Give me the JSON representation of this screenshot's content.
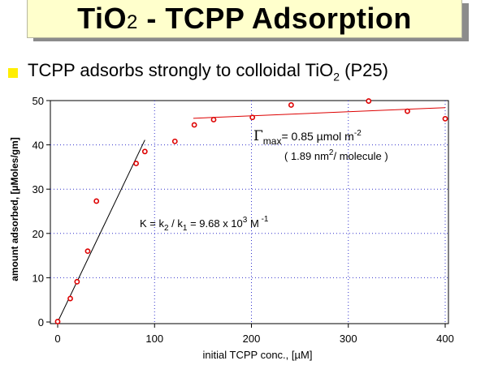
{
  "slide": {
    "title_main": "TiO",
    "title_sub": "2",
    "title_rest": " - TCPP Adsorption",
    "bullet_main": "TCPP adsorbs strongly to colloidal TiO",
    "bullet_sub": "2",
    "bullet_rest": " (P25)"
  },
  "colors": {
    "title_bg": "#ffffcc",
    "title_shadow": "#8c8c8c",
    "bullet": "#ffee00",
    "points": "#dd0000",
    "grid": "#3333cc"
  },
  "chart_data": {
    "type": "scatter",
    "xlabel": "initial TCPP conc., [µM]",
    "ylabel": "amount adsorbed, [µMoles/gm]",
    "xlim": [
      0,
      400
    ],
    "ylim": [
      0,
      50
    ],
    "x_ticks": [
      0,
      100,
      200,
      300,
      400
    ],
    "y_ticks": [
      0,
      10,
      20,
      30,
      40,
      50
    ],
    "grid": true,
    "points": [
      {
        "x": 0,
        "y": 0.1
      },
      {
        "x": 13,
        "y": 5.3
      },
      {
        "x": 20,
        "y": 9.1
      },
      {
        "x": 31,
        "y": 16.0
      },
      {
        "x": 40,
        "y": 27.3
      },
      {
        "x": 81,
        "y": 35.8
      },
      {
        "x": 90,
        "y": 38.5
      },
      {
        "x": 121,
        "y": 40.8
      },
      {
        "x": 141,
        "y": 44.5
      },
      {
        "x": 161,
        "y": 45.7
      },
      {
        "x": 201,
        "y": 46.2
      },
      {
        "x": 241,
        "y": 49.0
      },
      {
        "x": 321,
        "y": 49.9
      },
      {
        "x": 361,
        "y": 47.6
      },
      {
        "x": 400,
        "y": 45.9
      }
    ],
    "fits": [
      {
        "x": [
          0,
          90
        ],
        "y": [
          0,
          41.1
        ],
        "color": "#000000"
      },
      {
        "x": [
          140,
          400
        ],
        "y": [
          46.0,
          48.4
        ],
        "color": "#dd0000"
      }
    ],
    "annotations": {
      "gamma_symbol": "Γ",
      "gamma_sub": "max",
      "gamma_text": "= 0.85 µmol m",
      "gamma_sup": "-2",
      "area_text": "( 1.89 nm",
      "area_sup": "2",
      "area_rest": "/ molecule )",
      "k_text1": "K = k",
      "k_sub2": "2",
      "k_text2": " / k",
      "k_sub1": "1",
      "k_text3": " = 9.68 x 10",
      "k_sup": "3",
      "k_text4": " M",
      "k_sup2": " -1"
    }
  }
}
